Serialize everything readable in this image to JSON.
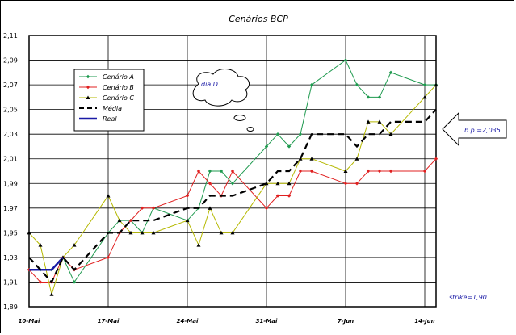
{
  "chart_data": {
    "type": "line",
    "title": "Cenários BCP",
    "xlabel": "",
    "ylabel": "",
    "ylim": [
      1.89,
      2.11
    ],
    "yticks": [
      "1,89",
      "1,91",
      "1,93",
      "1,95",
      "1,97",
      "1,99",
      "2,01",
      "2,03",
      "2,05",
      "2,07",
      "2,09",
      "2,11"
    ],
    "xlim": [
      0,
      36
    ],
    "xticks": [
      {
        "x": 0,
        "label": "10-Mai"
      },
      {
        "x": 7,
        "label": "17-Mai"
      },
      {
        "x": 14,
        "label": "24-Mai"
      },
      {
        "x": 21,
        "label": "31-Mai"
      },
      {
        "x": 28,
        "label": "7-Jun"
      },
      {
        "x": 35,
        "label": "14-Jun"
      }
    ],
    "grid": true,
    "legend_position": "top-left",
    "series": [
      {
        "name": "Cenário A",
        "color": "#1f9a4f",
        "marker": "diamond",
        "points": [
          [
            0,
            1.92
          ],
          [
            1,
            1.92
          ],
          [
            2,
            1.92
          ],
          [
            3,
            1.93
          ],
          [
            4,
            1.91
          ],
          [
            7,
            1.95
          ],
          [
            8,
            1.96
          ],
          [
            9,
            1.96
          ],
          [
            10,
            1.95
          ],
          [
            11,
            1.97
          ],
          [
            14,
            1.96
          ],
          [
            15,
            1.97
          ],
          [
            16,
            2.0
          ],
          [
            17,
            2.0
          ],
          [
            18,
            1.99
          ],
          [
            21,
            2.02
          ],
          [
            22,
            2.03
          ],
          [
            23,
            2.02
          ],
          [
            24,
            2.03
          ],
          [
            25,
            2.07
          ],
          [
            28,
            2.09
          ],
          [
            29,
            2.07
          ],
          [
            30,
            2.06
          ],
          [
            31,
            2.06
          ],
          [
            32,
            2.08
          ],
          [
            35,
            2.07
          ],
          [
            36,
            2.07
          ]
        ]
      },
      {
        "name": "Cenário B",
        "color": "#e02020",
        "marker": "diamond",
        "points": [
          [
            0,
            1.92
          ],
          [
            1,
            1.91
          ],
          [
            2,
            1.91
          ],
          [
            3,
            1.93
          ],
          [
            4,
            1.92
          ],
          [
            7,
            1.93
          ],
          [
            8,
            1.95
          ],
          [
            9,
            1.96
          ],
          [
            10,
            1.97
          ],
          [
            11,
            1.97
          ],
          [
            14,
            1.98
          ],
          [
            15,
            2.0
          ],
          [
            16,
            1.99
          ],
          [
            17,
            1.98
          ],
          [
            18,
            2.0
          ],
          [
            21,
            1.97
          ],
          [
            22,
            1.98
          ],
          [
            23,
            1.98
          ],
          [
            24,
            2.0
          ],
          [
            25,
            2.0
          ],
          [
            28,
            1.99
          ],
          [
            29,
            1.99
          ],
          [
            30,
            2.0
          ],
          [
            31,
            2.0
          ],
          [
            32,
            2.0
          ],
          [
            35,
            2.0
          ],
          [
            36,
            2.01
          ],
          [
            37,
            2.0
          ]
        ]
      },
      {
        "name": "Cenário C",
        "color": "#b5b800",
        "marker": "triangle",
        "points": [
          [
            0,
            1.95
          ],
          [
            1,
            1.94
          ],
          [
            2,
            1.9
          ],
          [
            3,
            1.93
          ],
          [
            4,
            1.94
          ],
          [
            7,
            1.98
          ],
          [
            8,
            1.96
          ],
          [
            9,
            1.95
          ],
          [
            10,
            1.95
          ],
          [
            11,
            1.95
          ],
          [
            14,
            1.96
          ],
          [
            15,
            1.94
          ],
          [
            16,
            1.97
          ],
          [
            17,
            1.95
          ],
          [
            18,
            1.95
          ],
          [
            21,
            1.99
          ],
          [
            22,
            1.99
          ],
          [
            23,
            1.99
          ],
          [
            24,
            2.01
          ],
          [
            25,
            2.01
          ],
          [
            28,
            2.0
          ],
          [
            29,
            2.01
          ],
          [
            30,
            2.04
          ],
          [
            31,
            2.04
          ],
          [
            32,
            2.03
          ],
          [
            35,
            2.06
          ],
          [
            36,
            2.07
          ],
          [
            37,
            2.06
          ]
        ]
      },
      {
        "name": "Média",
        "color": "#000000",
        "dash": true,
        "points": [
          [
            0,
            1.93
          ],
          [
            1,
            1.92
          ],
          [
            2,
            1.91
          ],
          [
            3,
            1.93
          ],
          [
            4,
            1.92
          ],
          [
            7,
            1.95
          ],
          [
            8,
            1.95
          ],
          [
            9,
            1.96
          ],
          [
            10,
            1.96
          ],
          [
            11,
            1.96
          ],
          [
            14,
            1.97
          ],
          [
            15,
            1.97
          ],
          [
            16,
            1.98
          ],
          [
            17,
            1.98
          ],
          [
            18,
            1.98
          ],
          [
            21,
            1.99
          ],
          [
            22,
            2.0
          ],
          [
            23,
            2.0
          ],
          [
            24,
            2.01
          ],
          [
            25,
            2.03
          ],
          [
            28,
            2.03
          ],
          [
            29,
            2.02
          ],
          [
            30,
            2.03
          ],
          [
            31,
            2.03
          ],
          [
            32,
            2.04
          ],
          [
            35,
            2.04
          ],
          [
            36,
            2.05
          ],
          [
            37,
            2.05
          ]
        ]
      },
      {
        "name": "Real",
        "color": "#1a1aa6",
        "points": [
          [
            0,
            1.92
          ],
          [
            1,
            1.92
          ],
          [
            2,
            1.92
          ],
          [
            3,
            1.93
          ]
        ]
      }
    ],
    "annotations": {
      "cloud": "dia D",
      "arrow": "b.p.=2,035",
      "strike": "strike=1,90"
    }
  }
}
